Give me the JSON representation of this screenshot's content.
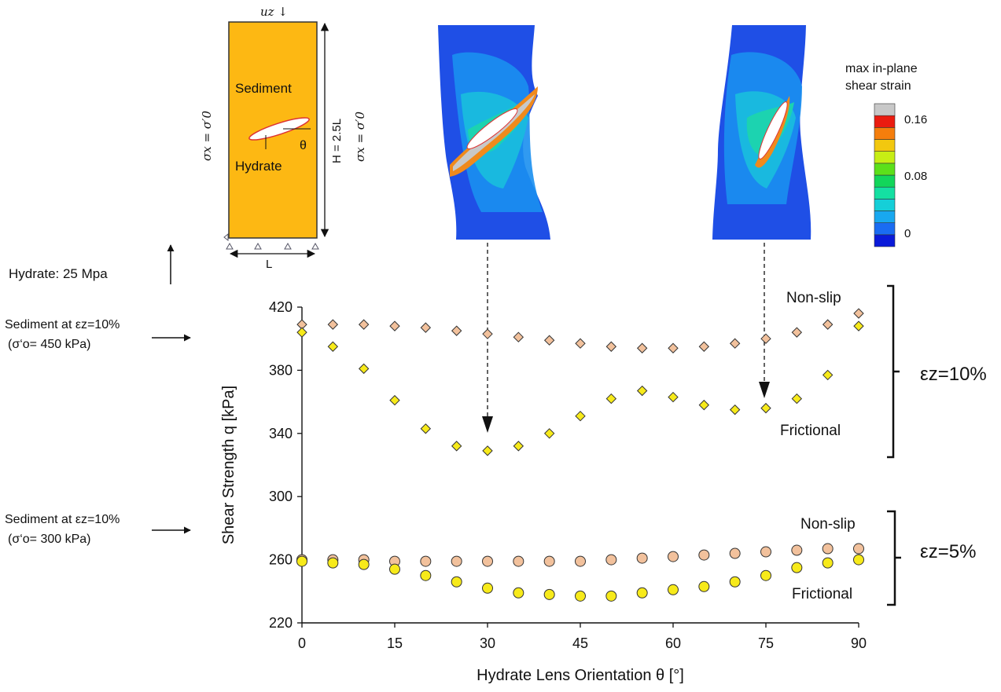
{
  "chart_data": {
    "type": "scatter",
    "xlabel": "Hydrate Lens Orientation θ [°]",
    "ylabel": "Shear Strength q [kPa]",
    "xlim": [
      0,
      90
    ],
    "ylim": [
      220,
      420
    ],
    "xticks": [
      "0",
      "15",
      "30",
      "45",
      "60",
      "75",
      "90"
    ],
    "yticks": [
      "220",
      "260",
      "300",
      "340",
      "380",
      "420"
    ],
    "grid": false,
    "x": [
      0,
      5,
      10,
      15,
      20,
      25,
      30,
      35,
      40,
      45,
      50,
      55,
      60,
      65,
      70,
      75,
      80,
      85,
      90
    ],
    "series": [
      {
        "group": "ez10",
        "label": "Non-slip",
        "marker": "diamond",
        "color": "#f2c19c",
        "values": [
          409,
          409,
          409,
          408,
          407,
          405,
          403,
          401,
          399,
          397,
          395,
          394,
          394,
          395,
          397,
          400,
          404,
          409,
          416
        ]
      },
      {
        "group": "ez10",
        "label": "Frictional",
        "marker": "diamond",
        "color": "#f7ea1a",
        "values": [
          404,
          395,
          381,
          361,
          343,
          332,
          329,
          332,
          340,
          351,
          362,
          367,
          363,
          358,
          355,
          356,
          362,
          377,
          408
        ]
      },
      {
        "group": "ez5",
        "label": "Non-slip",
        "marker": "circle",
        "color": "#f2c19c",
        "values": [
          260,
          260,
          260,
          259,
          259,
          259,
          259,
          259,
          259,
          259,
          260,
          261,
          262,
          263,
          264,
          265,
          266,
          267,
          267
        ]
      },
      {
        "group": "ez5",
        "label": "Frictional",
        "marker": "circle",
        "color": "#f7ea1a",
        "values": [
          259,
          258,
          257,
          254,
          250,
          246,
          242,
          239,
          238,
          237,
          237,
          239,
          241,
          243,
          246,
          250,
          255,
          258,
          260
        ]
      }
    ],
    "group_labels": {
      "ez10": "εz=10%",
      "ez5": "εz=5%"
    },
    "annotations": {
      "hydrate": "Hydrate: 25 Mpa",
      "sed450_line1": "Sediment at εz=10%",
      "sed450_line2": "(σ‘o= 450 kPa)",
      "sed300_line1": "Sediment at εz=10%",
      "sed300_line2": "(σ‘o= 300 kPa)"
    }
  },
  "schematic": {
    "top_load": "uz ↓",
    "sediment": "Sediment",
    "hydrate": "Hydrate",
    "theta": "θ",
    "left_stress": "σx = σ′0",
    "right_stress": "σx = σ′0",
    "height": "H = 2.5L",
    "width": "L"
  },
  "colorbar": {
    "title_line1": "max in-plane",
    "title_line2": "shear strain",
    "ticks": [
      "0.16",
      "0.08",
      "0"
    ],
    "colors": [
      "#0a1ad9",
      "#1a6cf2",
      "#18a8f0",
      "#15cfd8",
      "#14e0a2",
      "#12d65a",
      "#5ce01a",
      "#c7ee14",
      "#f2c80f",
      "#f57e0c",
      "#ea1c10",
      "#c8c8c8"
    ]
  },
  "fem_panels": {
    "left_theta": 30,
    "right_theta": 75
  }
}
